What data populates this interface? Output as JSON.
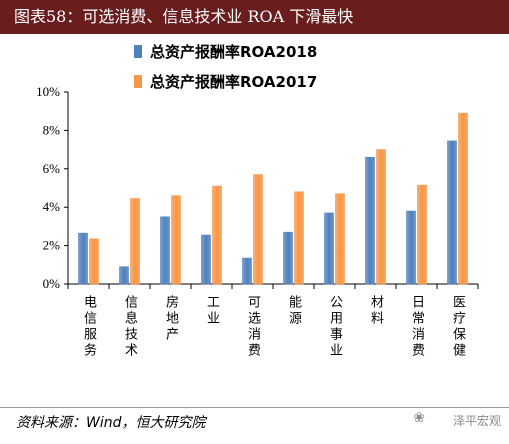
{
  "header": {
    "title": "图表58：可选消费、信息技术业 ROA 下滑最快"
  },
  "chart_data": {
    "type": "bar",
    "categories": [
      "电信服务",
      "信息技术",
      "房地产",
      "工业",
      "可选消费",
      "能源",
      "公用事业",
      "材料",
      "日常消费",
      "医疗保健"
    ],
    "series": [
      {
        "name": "总资产报酬率ROA2018",
        "color": "#4f81bd",
        "values": [
          2.65,
          0.9,
          3.5,
          2.55,
          1.35,
          2.7,
          3.7,
          6.6,
          3.8,
          7.45
        ]
      },
      {
        "name": "总资产报酬率ROA2017",
        "color": "#f79646",
        "values": [
          2.35,
          4.45,
          4.6,
          5.1,
          5.7,
          4.8,
          4.7,
          7.0,
          5.15,
          8.9
        ]
      }
    ],
    "ylim": [
      0,
      10
    ],
    "yticks": [
      "0%",
      "2%",
      "4%",
      "6%",
      "8%",
      "10%"
    ],
    "grid": false,
    "legend_position": "top"
  },
  "footer": {
    "source": "资料来源：Wind，恒大研究院",
    "watermark": "泽平宏观"
  },
  "colors": {
    "title_bar": "#6a1d1d",
    "bar_2018": "#4f81bd",
    "bar_2017": "#f79646"
  }
}
